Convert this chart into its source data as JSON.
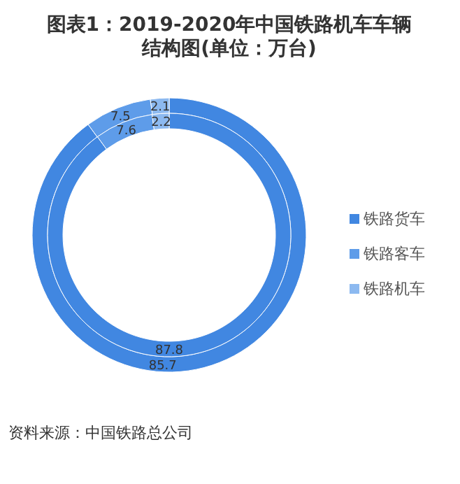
{
  "chart_data": [
    {
      "type": "donut",
      "title": "图表1：2019-2020年中国铁路机车车辆结构图(单位：万台)",
      "categories": [
        "铁路货车",
        "铁路客车",
        "铁路机车"
      ],
      "values": [
        85.7,
        7.5,
        2.1
      ],
      "colors": [
        "#4187e1",
        "#5e9ce9",
        "#8cb9f0"
      ],
      "data_labels": true,
      "legend": "right",
      "annotations": [
        "资料来源：中国铁路总公司"
      ]
    },
    {
      "type": "donut",
      "categories": [
        null,
        null,
        null
      ],
      "values": [
        87.8,
        7.6,
        2.2
      ],
      "colors": [
        "#4187e1",
        "#5e9ce9",
        "#8cb9f0"
      ],
      "data_labels": true
    }
  ]
}
